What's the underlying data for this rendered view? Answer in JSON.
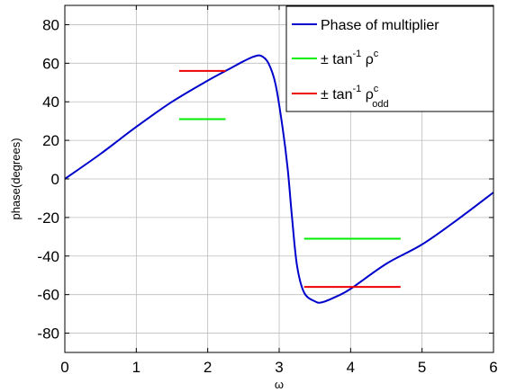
{
  "chart_data": {
    "type": "line",
    "xlabel": "ω",
    "ylabel": "phase(degrees)",
    "xlim": [
      0,
      6
    ],
    "ylim": [
      -90,
      90
    ],
    "x_ticks": [
      0,
      1,
      2,
      3,
      4,
      5,
      6
    ],
    "y_ticks": [
      80,
      60,
      40,
      20,
      0,
      -20,
      -40,
      -60,
      -80
    ],
    "grid": true,
    "legend_position": "top-right",
    "series": [
      {
        "name": "Phase of multiplier",
        "color": "#0000cc",
        "style": "curve",
        "x": [
          0,
          0.5,
          1.0,
          1.5,
          2.0,
          2.3,
          2.5,
          2.65,
          2.75,
          2.85,
          2.95,
          3.05,
          3.12,
          3.18,
          3.25,
          3.35,
          3.5,
          3.6,
          3.8,
          4.0,
          4.5,
          5.0,
          5.5,
          6.0
        ],
        "y": [
          0,
          13,
          27,
          40,
          51,
          57,
          61,
          63.5,
          63.8,
          60,
          49,
          26,
          5,
          -20,
          -45,
          -59,
          -63.5,
          -64,
          -61,
          -57,
          -44,
          -34,
          -21,
          -7
        ]
      },
      {
        "name": "± tan⁻¹ ρᶜ",
        "legend": {
          "prefix": "± tan",
          "sup1": "-1",
          "mid": " ρ",
          "sup2": "c",
          "sub": ""
        },
        "color": "#00ee00",
        "style": "segments",
        "segments": [
          {
            "x": [
              1.6,
              2.25
            ],
            "y": 31
          },
          {
            "x": [
              3.35,
              4.7
            ],
            "y": -31
          }
        ]
      },
      {
        "name": "± tan⁻¹ ρᶜ_odd",
        "legend": {
          "prefix": "± tan",
          "sup1": "-1",
          "mid": " ρ",
          "sup2": "c",
          "sub": "odd"
        },
        "color": "#ee0000",
        "style": "segments",
        "segments": [
          {
            "x": [
              1.6,
              2.25
            ],
            "y": 56
          },
          {
            "x": [
              3.35,
              4.7
            ],
            "y": -56
          }
        ]
      }
    ]
  }
}
